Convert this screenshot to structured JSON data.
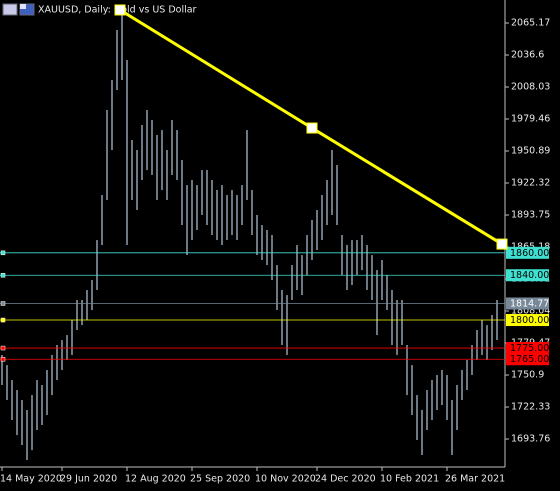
{
  "chart_data": {
    "type": "range-bar",
    "title": "XAUUSD, Daily: Gold vs US Dollar",
    "categories": [
      "14 May 2020",
      null,
      null,
      null,
      null,
      null,
      null,
      null,
      null,
      null,
      null,
      null,
      "29 Jun 2020",
      null,
      null,
      null,
      null,
      null,
      null,
      null,
      null,
      null,
      null,
      null,
      null,
      "12 Aug 2020",
      null,
      null,
      null,
      null,
      null,
      null,
      null,
      null,
      null,
      null,
      null,
      null,
      "25 Sep 2020",
      null,
      null,
      null,
      null,
      null,
      null,
      null,
      null,
      null,
      null,
      null,
      null,
      "10 Nov 2020",
      null,
      null,
      null,
      null,
      null,
      null,
      null,
      null,
      null,
      null,
      null,
      "24 Dec 2020",
      null,
      null,
      null,
      null,
      null,
      null,
      null,
      null,
      null,
      null,
      null,
      null,
      "10 Feb 2021",
      null,
      null,
      null,
      null,
      null,
      null,
      null,
      null,
      null,
      null,
      null,
      null,
      "26 Mar 2021",
      null,
      null,
      null,
      null,
      null,
      null,
      null,
      null,
      null,
      null
    ],
    "series": [
      {
        "name": "High",
        "color": "#b4c8dc",
        "values": [
          1768.8,
          1759.8,
          1746.4,
          1737.5,
          1728.6,
          1719.7,
          1733.0,
          1746.4,
          1742.0,
          1755.4,
          1768.8,
          1777.7,
          1782.1,
          1786.6,
          1800.0,
          1817.9,
          1817.9,
          1826.8,
          1835.7,
          1871.4,
          1911.6,
          1987.5,
          2014.3,
          2058.9,
          2076.8,
          2032.1,
          1960.7,
          1951.8,
          1974.1,
          1987.5,
          1978.6,
          1965.2,
          1969.6,
          1951.8,
          1978.6,
          1969.6,
          1942.9,
          1920.5,
          1925.0,
          1920.5,
          1933.9,
          1933.9,
          1925.0,
          1916.1,
          1920.5,
          1911.6,
          1916.1,
          1911.6,
          1920.5,
          1969.6,
          1916.1,
          1893.8,
          1884.8,
          1880.4,
          1875.9,
          1849.1,
          1826.8,
          1822.3,
          1849.1,
          1867.0,
          1858.0,
          1875.9,
          1889.3,
          1898.2,
          1911.6,
          1925.0,
          1951.8,
          1938.4,
          1875.9,
          1867.0,
          1871.4,
          1871.4,
          1875.9,
          1867.0,
          1858.0,
          1844.6,
          1853.6,
          1840.2,
          1826.8,
          1817.9,
          1817.9,
          1777.7,
          1759.8,
          1733.0,
          1719.7,
          1737.5,
          1746.4,
          1750.9,
          1755.4,
          1750.9,
          1728.6,
          1742.0,
          1755.4,
          1764.3,
          1777.7,
          1791.1,
          1800.0,
          1795.5,
          1804.5,
          1817.9
        ]
      },
      {
        "name": "Low",
        "color": "#b4c8dc",
        "values": [
          1742.0,
          1728.6,
          1710.7,
          1697.3,
          1688.4,
          1675.0,
          1683.9,
          1701.8,
          1706.3,
          1715.2,
          1733.0,
          1746.4,
          1755.4,
          1764.3,
          1768.8,
          1791.1,
          1795.5,
          1800.0,
          1808.9,
          1826.8,
          1867.0,
          1907.1,
          1951.8,
          2005.3,
          2014.3,
          1867.0,
          1907.1,
          1898.2,
          1925.0,
          1933.9,
          1929.5,
          1907.1,
          1916.1,
          1907.1,
          1929.5,
          1925.0,
          1884.8,
          1858.0,
          1871.4,
          1880.4,
          1893.8,
          1884.8,
          1875.9,
          1871.4,
          1867.0,
          1871.4,
          1875.9,
          1871.4,
          1884.8,
          1907.1,
          1875.9,
          1858.0,
          1853.6,
          1849.1,
          1835.7,
          1808.9,
          1777.7,
          1768.8,
          1817.9,
          1826.8,
          1822.3,
          1840.2,
          1853.6,
          1862.5,
          1871.4,
          1884.8,
          1893.8,
          1884.8,
          1840.2,
          1826.8,
          1831.3,
          1840.2,
          1844.6,
          1826.8,
          1817.9,
          1786.6,
          1817.9,
          1808.9,
          1777.7,
          1768.8,
          1777.7,
          1733.0,
          1715.2,
          1692.9,
          1679.5,
          1701.8,
          1710.7,
          1719.7,
          1724.1,
          1710.7,
          1679.5,
          1701.8,
          1728.6,
          1737.5,
          1750.9,
          1764.3,
          1768.8,
          1764.3,
          1773.2,
          1782.1
        ]
      }
    ],
    "ylim": [
      1668.8,
      2085.7
    ],
    "yticks": [
      2065.17,
      2036.6,
      2008.03,
      1979.46,
      1950.89,
      1922.32,
      1893.75,
      1865.18,
      1836.61,
      1808.04,
      1779.47,
      1750.9,
      1722.33,
      1693.76
    ],
    "levels": {
      "values": [
        1860,
        1840,
        1814.77,
        1800,
        1775,
        1765
      ],
      "value_labels": [
        "1860.00",
        "1840.00",
        "1814.77",
        "1800.00",
        "1775.00",
        "1765.00"
      ],
      "colors": [
        "#40e0d0",
        "#40e0d0",
        "#778899",
        "#ffff00",
        "#ff0000",
        "#ff0000"
      ]
    },
    "trendline": {
      "color": "#ffff00",
      "x": [
        23.6,
        62,
        100
      ],
      "values": [
        2076.8,
        1971.4,
        1867.8
      ]
    }
  }
}
